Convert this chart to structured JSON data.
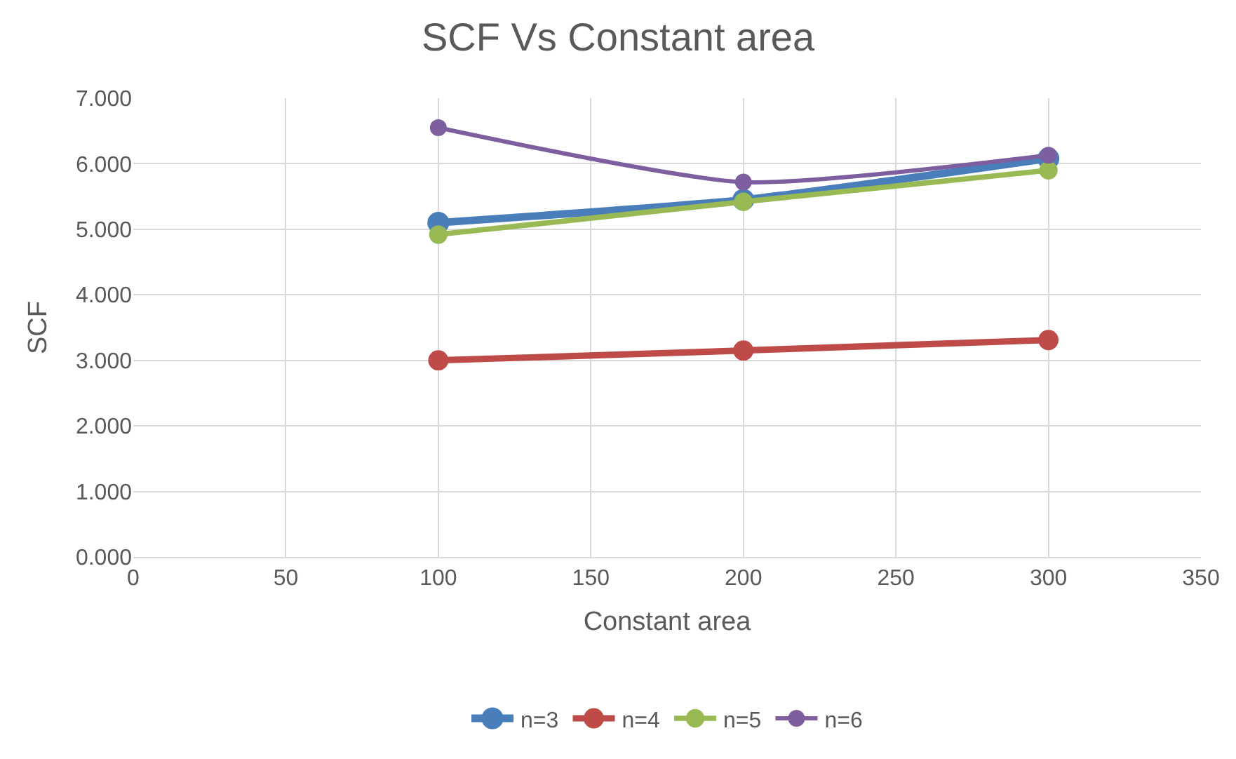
{
  "chart_data": {
    "type": "line",
    "title": "SCF Vs Constant area",
    "xlabel": "Constant area",
    "ylabel": "SCF",
    "x": [
      100,
      200,
      300
    ],
    "series": [
      {
        "name": "n=3",
        "color": "#4a7ebb",
        "values": [
          5.1,
          5.45,
          6.08
        ]
      },
      {
        "name": "n=4",
        "color": "#be4b48",
        "values": [
          3.0,
          3.15,
          3.31
        ]
      },
      {
        "name": "n=5",
        "color": "#98b954",
        "values": [
          4.92,
          5.42,
          5.9
        ]
      },
      {
        "name": "n=6",
        "color": "#7d5fa0",
        "values": [
          6.55,
          5.72,
          6.13
        ]
      }
    ],
    "xlim": [
      0,
      350
    ],
    "xticks": [
      0,
      50,
      100,
      150,
      200,
      250,
      300,
      350
    ],
    "ylim": [
      0,
      7
    ],
    "yticks": [
      {
        "value": 0,
        "label": "0.000"
      },
      {
        "value": 1,
        "label": "1.000"
      },
      {
        "value": 2,
        "label": "2.000"
      },
      {
        "value": 3,
        "label": "3.000"
      },
      {
        "value": 4,
        "label": "4.000"
      },
      {
        "value": 5,
        "label": "5.000"
      },
      {
        "value": 6,
        "label": "6.000"
      },
      {
        "value": 7,
        "label": "7.000"
      }
    ],
    "grid": true,
    "legend": "bottom",
    "marker": "circle",
    "line_style": "solid"
  }
}
